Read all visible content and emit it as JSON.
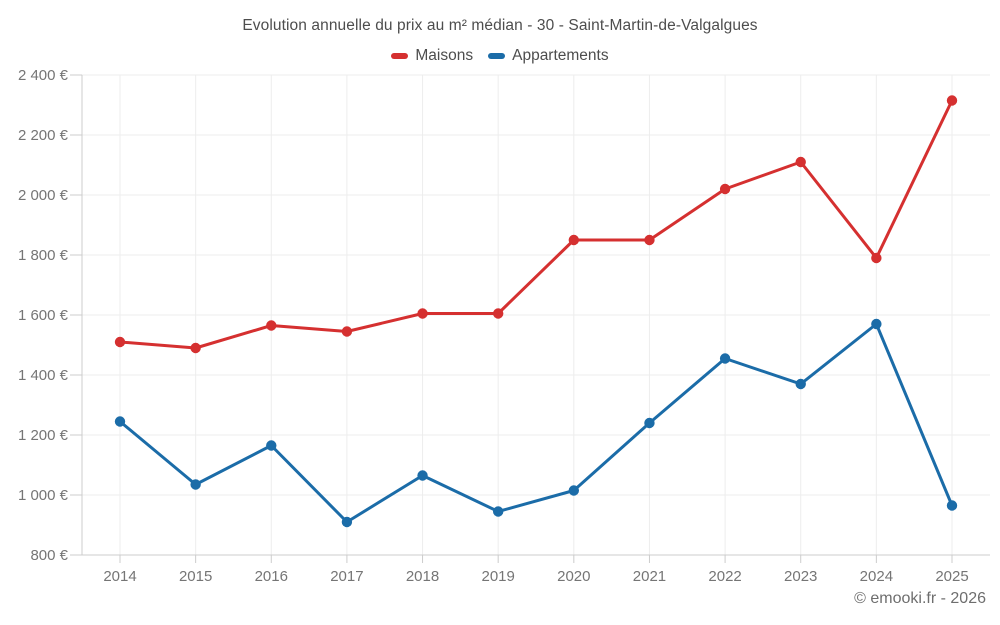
{
  "page": {
    "watermark": "© emooki.fr - 2026"
  },
  "chart_data": {
    "type": "line",
    "title": "Evolution annuelle du prix au m² médian - 30 - Saint-Martin-de-Valgalgues",
    "categories": [
      "2014",
      "2015",
      "2016",
      "2017",
      "2018",
      "2019",
      "2020",
      "2021",
      "2022",
      "2023",
      "2024",
      "2025"
    ],
    "series": [
      {
        "name": "Maisons",
        "color": "#d53030",
        "values": [
          1510,
          1490,
          1565,
          1545,
          1605,
          1605,
          1850,
          1850,
          2020,
          2110,
          1790,
          2315
        ]
      },
      {
        "name": "Appartements",
        "color": "#1b6ca8",
        "values": [
          1245,
          1035,
          1165,
          910,
          1065,
          945,
          1015,
          1240,
          1455,
          1370,
          1570,
          965
        ]
      }
    ],
    "ylabel": "",
    "xlabel": "",
    "unit": "€",
    "ylim": [
      800,
      2400
    ],
    "ytick_step": 200,
    "ytick_labels": [
      "800 €",
      "1 000 €",
      "1 200 €",
      "1 400 €",
      "1 600 €",
      "1 800 €",
      "2 000 €",
      "2 200 €",
      "2 400 €"
    ],
    "grid": true,
    "legend_position": "top",
    "axis_label_color": "#757575",
    "grid_color": "#ededed",
    "axis_line_color": "#cccccc"
  }
}
